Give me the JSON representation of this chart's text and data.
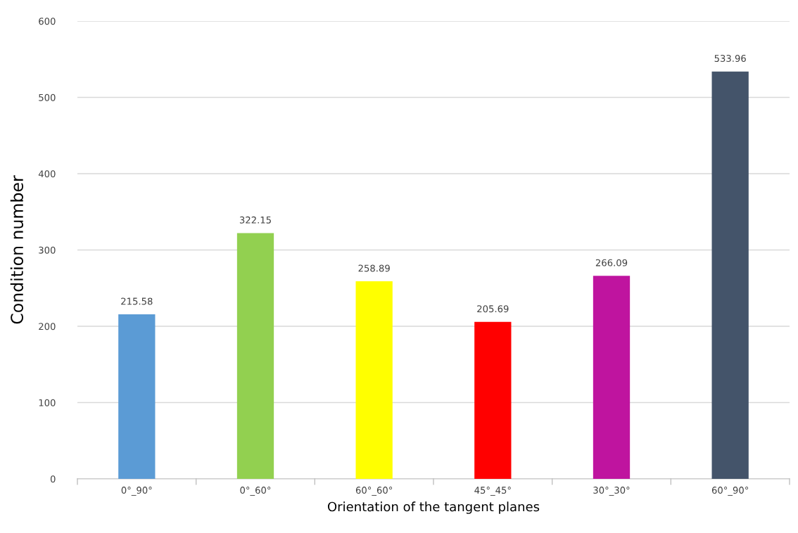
{
  "chart_data": {
    "type": "bar",
    "xlabel": "Orientation of the tangent planes",
    "ylabel": "Condition number",
    "categories": [
      "0°_90°",
      "0°_60°",
      "60°_60°",
      "45°_45°",
      "30°_30°",
      "60°_90°"
    ],
    "values": [
      215.58,
      322.15,
      258.89,
      205.69,
      266.09,
      533.96
    ],
    "colors": [
      "#5b9bd5",
      "#92d050",
      "#ffff00",
      "#ff0000",
      "#bf149f",
      "#44546a"
    ],
    "ylim": [
      0,
      600
    ],
    "yticks": [
      0,
      100,
      200,
      300,
      400,
      500,
      600
    ],
    "grid": "y",
    "data_labels": true,
    "legend": false
  }
}
